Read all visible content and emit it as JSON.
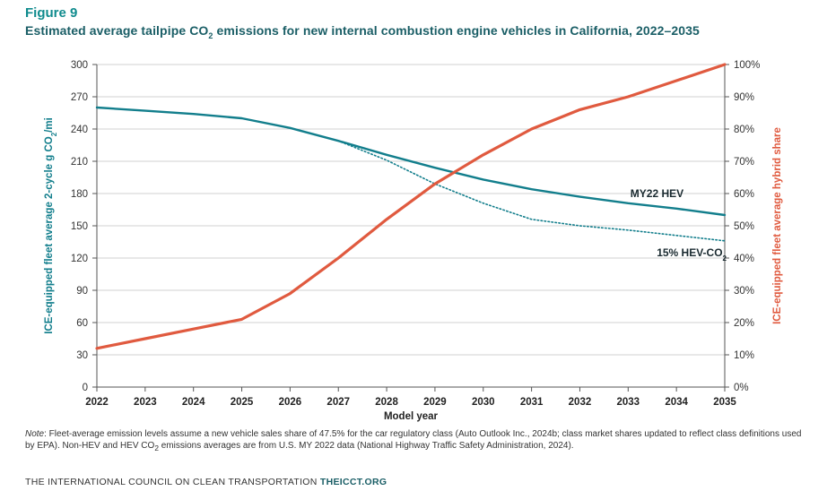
{
  "figure": {
    "label": "Figure 9",
    "title_pre": "Estimated average tailpipe CO",
    "title_sub": "2",
    "title_post": " emissions for new internal combustion engine vehicles in California, 2022–2035"
  },
  "chart_data": {
    "type": "line",
    "title": "Estimated average tailpipe CO2 emissions for new internal combustion engine vehicles in California, 2022–2035",
    "xlabel": "Model year",
    "ylabel_left_pre": "ICE-equipped fleet average 2-cycle g CO",
    "ylabel_left_sub": "2",
    "ylabel_left_post": "/mi",
    "ylabel_right": "ICE-equipped fleet average hybrid share",
    "x": [
      2022,
      2023,
      2024,
      2025,
      2026,
      2027,
      2028,
      2029,
      2030,
      2031,
      2032,
      2033,
      2034,
      2035
    ],
    "ylim_left": [
      0,
      300
    ],
    "ylim_right": [
      0,
      100
    ],
    "yticks_left": [
      "0",
      "30",
      "60",
      "90",
      "120",
      "150",
      "180",
      "210",
      "240",
      "270",
      "300"
    ],
    "yticks_right": [
      "0%",
      "10%",
      "20%",
      "30%",
      "40%",
      "50%",
      "60%",
      "70%",
      "80%",
      "90%",
      "100%"
    ],
    "series": [
      {
        "name": "MY22 HEV",
        "axis": "left",
        "style": "solid",
        "color": "#127e8c",
        "values": [
          260,
          257,
          254,
          250,
          241,
          229,
          216,
          204,
          193,
          184,
          177,
          171,
          166,
          160
        ]
      },
      {
        "name": "15% HEV-CO",
        "name_sub": "2",
        "axis": "left",
        "style": "dotted",
        "color": "#127e8c",
        "values": [
          260,
          257,
          254,
          250,
          241,
          229,
          211,
          189,
          171,
          156,
          150,
          146,
          141,
          136
        ]
      },
      {
        "name": "Hybrid share",
        "axis": "right",
        "style": "solid",
        "color": "#e05a3f",
        "values": [
          12,
          15,
          18,
          21,
          29,
          40,
          52,
          63,
          72,
          80,
          86,
          90,
          95,
          100
        ]
      }
    ]
  },
  "note": {
    "label": "Note",
    "text": ": Fleet-average emission levels assume a new vehicle sales share of 47.5% for the car regulatory class (Auto Outlook Inc., 2024b; class market shares updated to reflect class definitions used by EPA). Non-HEV and HEV CO",
    "sub": "2",
    "text2": " emissions averages are from U.S. MY 2022 data (National Highway Traffic Safety Administration, 2024)."
  },
  "footer": {
    "org": "THE INTERNATIONAL COUNCIL ON CLEAN TRANSPORTATION ",
    "site": "THEICCT.ORG"
  }
}
